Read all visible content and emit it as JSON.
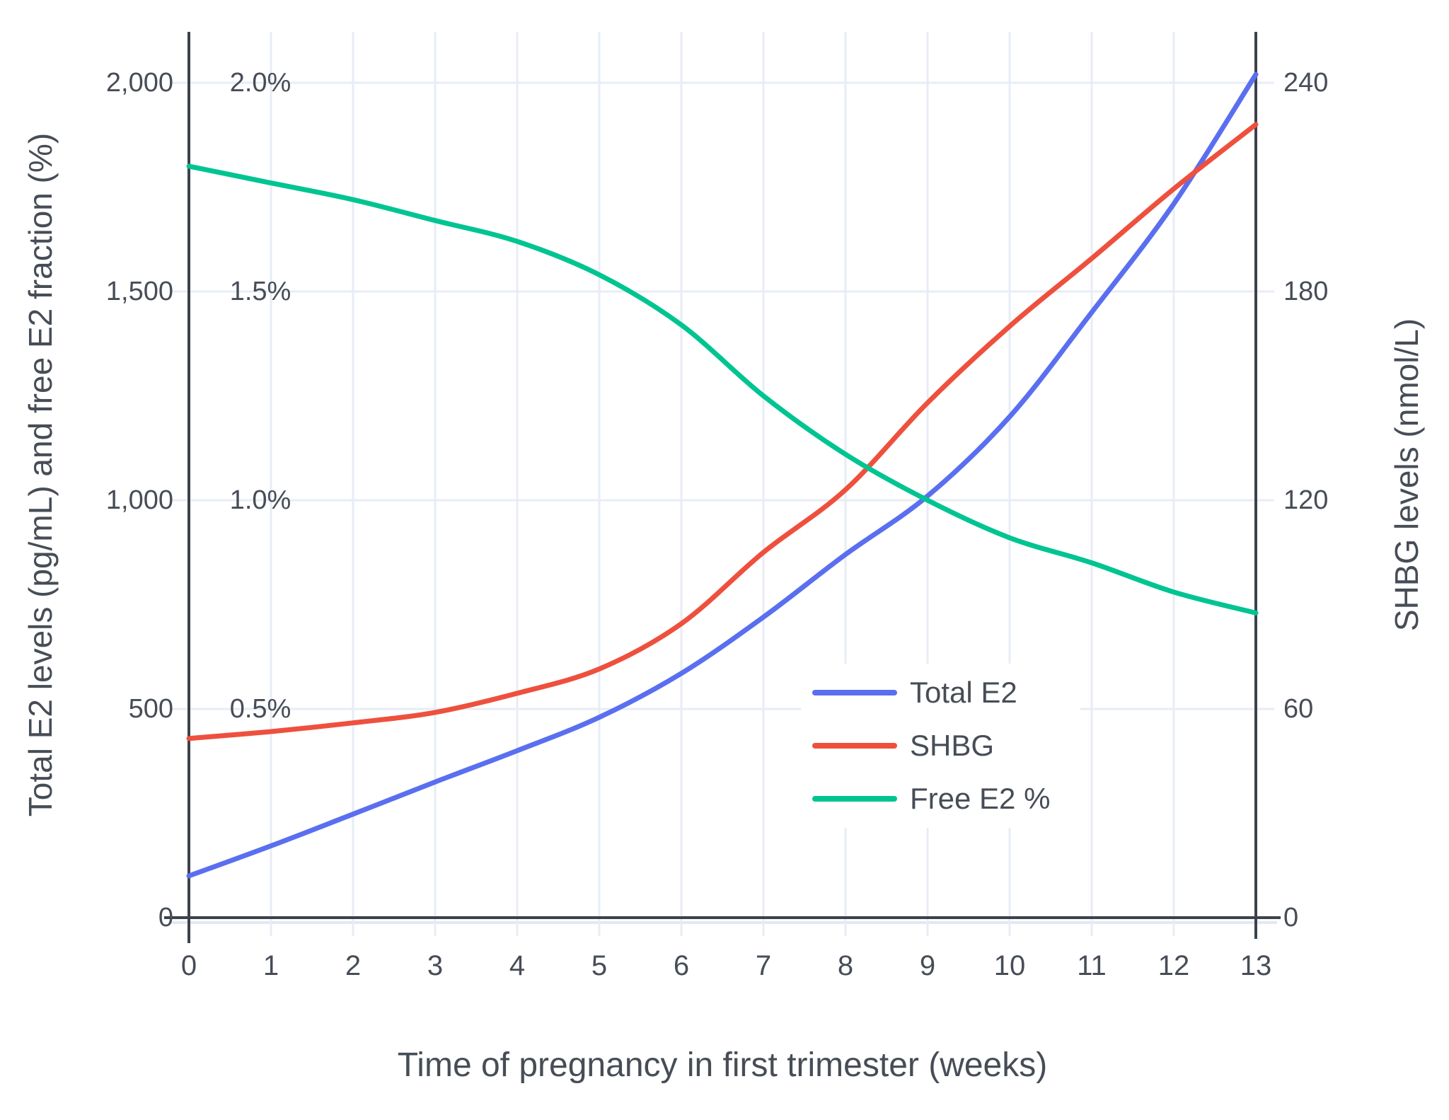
{
  "chart_data": {
    "type": "line",
    "xlabel": "Time of pregnancy in first trimester (weeks)",
    "ylabel_left": "Total E2 levels (pg/mL) and free E2 fraction (%)",
    "ylabel_right": "SHBG levels (nmol/L)",
    "x": [
      0,
      1,
      2,
      3,
      4,
      5,
      6,
      7,
      8,
      9,
      10,
      11,
      12,
      13
    ],
    "series": [
      {
        "name": "Total E2",
        "axis": "left",
        "units": "pg/mL",
        "color": "#5A6FF0",
        "values": [
          100,
          172,
          248,
          325,
          400,
          480,
          585,
          720,
          870,
          1010,
          1200,
          1450,
          1710,
          2020
        ]
      },
      {
        "name": "SHBG",
        "axis": "right",
        "units": "nmol/L",
        "color": "#EE503E",
        "values": [
          51.5,
          53.5,
          56,
          59,
          64.5,
          71.5,
          84.5,
          105,
          123,
          148,
          170,
          189.5,
          209.5,
          228
        ]
      },
      {
        "name": "Free E2 %",
        "axis": "left-percent",
        "units": "%",
        "color": "#00C491",
        "values": [
          1.8,
          1.76,
          1.72,
          1.67,
          1.62,
          1.54,
          1.42,
          1.25,
          1.11,
          1.0,
          0.91,
          0.85,
          0.78,
          0.73
        ]
      }
    ],
    "axes": {
      "x": {
        "range": [
          0,
          13
        ],
        "tick_labels": [
          "0",
          "1",
          "2",
          "3",
          "4",
          "5",
          "6",
          "7",
          "8",
          "9",
          "10",
          "11",
          "12",
          "13"
        ]
      },
      "left": {
        "range": [
          0,
          2122
        ],
        "tick_values": [
          0,
          500,
          1000,
          1500,
          2000
        ],
        "tick_labels": [
          "0",
          "500",
          "1,000",
          "1,500",
          "2,000"
        ]
      },
      "left_percent": {
        "tick_values": [
          500,
          1000,
          1500,
          2000
        ],
        "tick_labels": [
          "0.5%",
          "1.0%",
          "1.5%",
          "2.0%"
        ]
      },
      "right": {
        "range": [
          0,
          254.6
        ],
        "tick_values": [
          0,
          60,
          120,
          180,
          240
        ],
        "tick_labels": [
          "0",
          "60",
          "120",
          "180",
          "240"
        ]
      }
    },
    "legend": {
      "entries": [
        "Total E2",
        "SHBG",
        "Free E2 %"
      ],
      "position": "inside-right"
    },
    "grid": true
  },
  "colors": {
    "background": "#FFFFFF",
    "gridline": "#E7ECF6",
    "sub_axis_line": "#E2E9F4",
    "axis_line": "#3C424C",
    "text": "#474D56",
    "legend_background": "#FFFFFF"
  }
}
